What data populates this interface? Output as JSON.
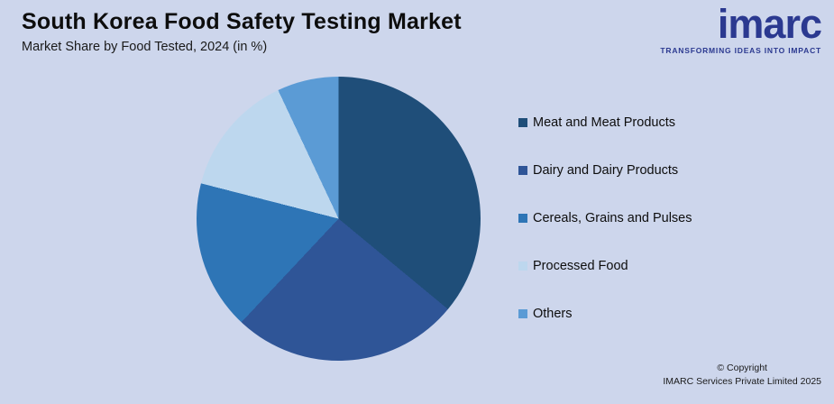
{
  "page": {
    "title": "South Korea Food Safety Testing Market",
    "subtitle": "Market Share by Food Tested, 2024 (in %)",
    "background_color": "#cdd6ec"
  },
  "logo": {
    "wordmark": "imarc",
    "tagline": "TRANSFORMING IDEAS INTO IMPACT",
    "color": "#2b3990"
  },
  "footer": {
    "line1": "© Copyright",
    "line2": "IMARC Services Private Limited 2025"
  },
  "chart_data": {
    "type": "pie",
    "title": "Market Share by Food Tested, 2024 (in %)",
    "categories": [
      "Meat and Meat Products",
      "Dairy and Dairy Products",
      "Cereals, Grains and Pulses",
      "Processed Food",
      "Others"
    ],
    "values": [
      36,
      26,
      17,
      14,
      7
    ],
    "colors": [
      "#1f4e79",
      "#2f5597",
      "#2e75b6",
      "#bdd7ee",
      "#5b9bd5"
    ],
    "start_angle_deg": 0,
    "direction": "clockwise",
    "legend_position": "right",
    "data_labels": false,
    "values_note": "estimated from slice angles; no data labels shown in chart"
  }
}
